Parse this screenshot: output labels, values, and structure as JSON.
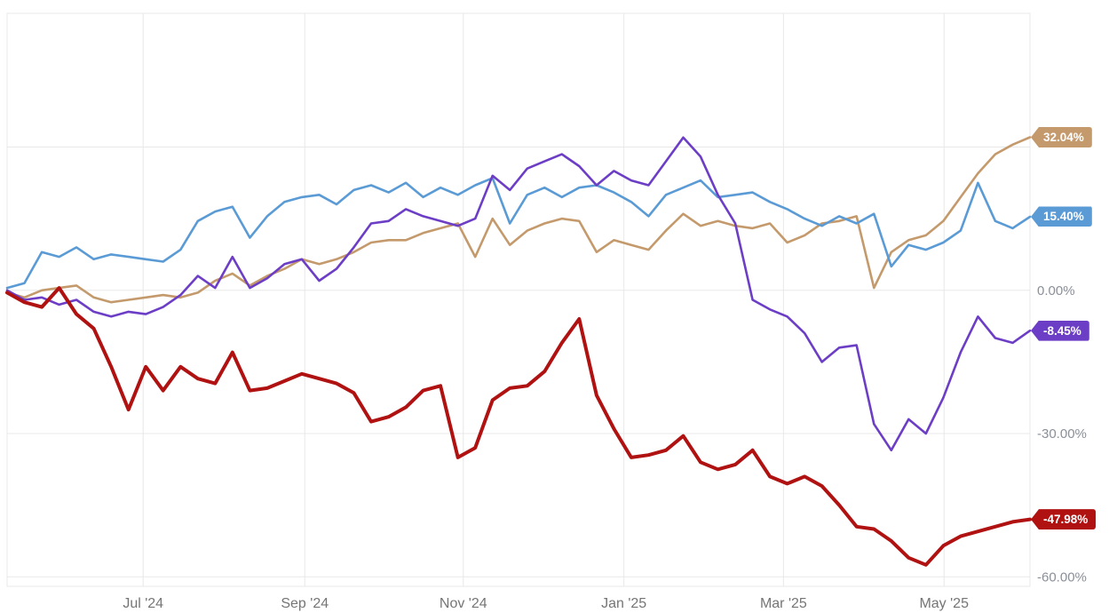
{
  "colors": {
    "background": "#ffffff",
    "grid": "#e8e8e8",
    "y_axis_text": "#8a8f98",
    "x_axis_text": "#757575",
    "badge_text": "#ffffff"
  },
  "chart_data": {
    "type": "line",
    "title": "",
    "xlabel": "",
    "ylabel": "",
    "ylim": [
      -62,
      58
    ],
    "grid": true,
    "legend_position": "none",
    "x_axis_type": "time",
    "x_range": [
      "Jun '24",
      "Jun '25"
    ],
    "yticks": [
      {
        "value": 30,
        "label": ""
      },
      {
        "value": 0,
        "label": "0.00%"
      },
      {
        "value": -30,
        "label": "-30.00%"
      },
      {
        "value": -60,
        "label": "-60.00%"
      }
    ],
    "xticks": [
      {
        "pos": 0.133,
        "label": "Jul '24"
      },
      {
        "pos": 0.291,
        "label": "Sep '24"
      },
      {
        "pos": 0.446,
        "label": "Nov '24"
      },
      {
        "pos": 0.603,
        "label": "Jan '25"
      },
      {
        "pos": 0.759,
        "label": "Mar '25"
      },
      {
        "pos": 0.916,
        "label": "May '25"
      }
    ],
    "series": [
      {
        "name": "series-tan",
        "color": "#c49a6c",
        "width": 2.6,
        "end_label": "32.04%",
        "end_value": 32.04,
        "values": [
          -0.5,
          -1.5,
          0,
          0.5,
          1,
          -1.5,
          -2.5,
          -2,
          -1.5,
          -1,
          -1.5,
          -0.5,
          2,
          3.5,
          1,
          3,
          4.5,
          6.5,
          5.5,
          6.5,
          8,
          10,
          10.5,
          10.5,
          12,
          13,
          14,
          7,
          15,
          9.5,
          12.5,
          14,
          15,
          14.5,
          8,
          10.5,
          9.5,
          8.5,
          12.5,
          16,
          13.5,
          14.5,
          13.5,
          13,
          14,
          10,
          11.5,
          14,
          14.5,
          15.5,
          0.5,
          8,
          10.5,
          11.5,
          14.5,
          19.5,
          24.5,
          28.5,
          30.5,
          32.04
        ]
      },
      {
        "name": "series-blue",
        "color": "#5b9bd5",
        "width": 2.6,
        "end_label": "15.40%",
        "end_value": 15.4,
        "values": [
          0.5,
          1.5,
          8,
          7,
          9,
          6.5,
          7.5,
          7,
          6.5,
          6,
          8.5,
          14.5,
          16.5,
          17.5,
          11,
          15.5,
          18.5,
          19.5,
          20,
          18,
          21,
          22,
          20.5,
          22.5,
          19.5,
          21.5,
          20,
          22,
          23.5,
          14,
          20,
          21.5,
          19.5,
          21.5,
          22,
          20.5,
          18.5,
          15.5,
          20,
          21.5,
          23,
          19.5,
          20,
          20.5,
          18.5,
          17,
          15,
          13.5,
          15.5,
          14,
          16,
          5,
          9.5,
          8.5,
          10,
          12.5,
          22.5,
          14.5,
          13,
          15.4
        ]
      },
      {
        "name": "series-purple",
        "color": "#6c3ec6",
        "width": 2.6,
        "end_label": "-8.45%",
        "end_value": -8.45,
        "values": [
          0,
          -2,
          -1.5,
          -3,
          -2,
          -4.5,
          -5.5,
          -4.5,
          -5,
          -3.5,
          -1,
          3,
          0.5,
          7,
          0.5,
          2.5,
          5.5,
          6.5,
          2,
          4.5,
          9,
          14,
          14.5,
          17,
          15.5,
          14.5,
          13.5,
          15,
          24,
          21,
          25.5,
          27,
          28.5,
          26,
          22,
          25,
          23,
          22,
          27,
          32,
          28,
          20,
          14,
          -2,
          -4,
          -5.5,
          -9,
          -15,
          -12,
          -11.5,
          -28,
          -33.5,
          -27,
          -30,
          -22.5,
          -13,
          -5.5,
          -10,
          -11,
          -8.45
        ]
      },
      {
        "name": "series-red",
        "color": "#b01212",
        "width": 4,
        "end_label": "-47.98%",
        "end_value": -47.98,
        "values": [
          -0.5,
          -2.5,
          -3.5,
          0.5,
          -5,
          -8,
          -16,
          -25,
          -16,
          -21,
          -16,
          -18.5,
          -19.5,
          -13,
          -21,
          -20.5,
          -19,
          -17.5,
          -18.5,
          -19.5,
          -21.5,
          -27.5,
          -26.5,
          -24.5,
          -21,
          -20,
          -35,
          -33,
          -23,
          -20.5,
          -20,
          -17,
          -11,
          -6,
          -22,
          -29,
          -35,
          -34.5,
          -33.5,
          -30.5,
          -36,
          -37.5,
          -36.5,
          -33.5,
          -39,
          -40.5,
          -39,
          -41,
          -45,
          -49.5,
          -50,
          -52.5,
          -56,
          -57.5,
          -53.5,
          -51.5,
          -50.5,
          -49.5,
          -48.5,
          -47.98
        ]
      }
    ]
  }
}
